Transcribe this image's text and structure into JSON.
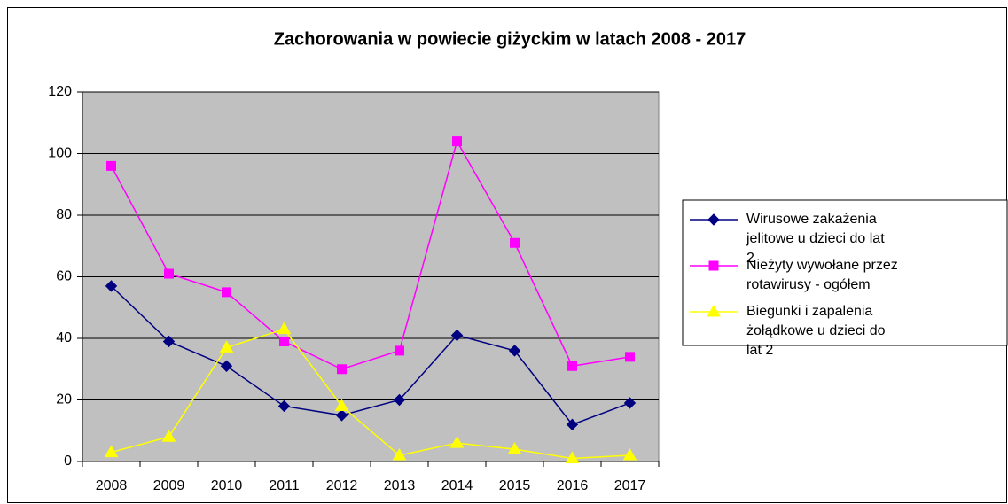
{
  "chart_data": {
    "type": "line",
    "title": "Zachorowania w powiecie giżyckim w latach 2008 - 2017",
    "categories": [
      "2008",
      "2009",
      "2010",
      "2011",
      "2012",
      "2013",
      "2014",
      "2015",
      "2016",
      "2017"
    ],
    "series": [
      {
        "name": "Wirusowe zakażenia jelitowe u dzieci do lat 2",
        "color": "#000080",
        "marker": "diamond",
        "values": [
          57,
          39,
          31,
          18,
          15,
          20,
          41,
          36,
          12,
          19
        ]
      },
      {
        "name": "Nieżyty wywołane przez rotawirusy - ogółem",
        "color": "#ff00ff",
        "marker": "square",
        "values": [
          96,
          61,
          55,
          39,
          30,
          36,
          104,
          71,
          31,
          34
        ]
      },
      {
        "name": "Biegunki i zapalenia żołądkowe u dzieci do lat 2",
        "color": "#ffff00",
        "marker": "triangle",
        "values": [
          3,
          8,
          37,
          43,
          18,
          2,
          6,
          4,
          1,
          2
        ]
      }
    ],
    "ylim": [
      0,
      120
    ],
    "yticks": [
      0,
      20,
      40,
      60,
      80,
      100,
      120
    ],
    "grid": true,
    "legend": "right"
  }
}
